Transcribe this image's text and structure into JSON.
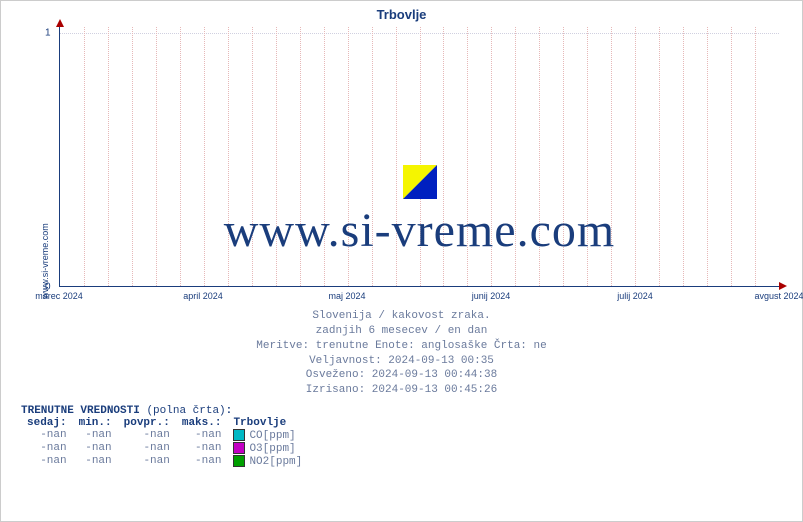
{
  "title": "Trbovlje",
  "site_label": "www.si-vreme.com",
  "watermark_text": "www.si-vreme.com",
  "chart": {
    "type": "line",
    "background_color": "#ffffff",
    "axis_color": "#1a3d7c",
    "grid_color_major": "#d0d0e0",
    "grid_color_minor": "#e6b8b8",
    "arrow_color": "#aa0000",
    "xlim_labels": [
      "marec 2024",
      "april 2024",
      "maj 2024",
      "junij 2024",
      "julij 2024",
      "avgust 2024"
    ],
    "ylim": [
      0,
      1
    ],
    "yticks": [
      0,
      1
    ],
    "minor_x_count": 30,
    "title_fontsize": 13,
    "label_fontsize": 9,
    "watermark_fontsize": 48
  },
  "meta": {
    "line1": "Slovenija / kakovost zraka.",
    "line2": "zadnjih 6 mesecev / en dan",
    "line3": "Meritve: trenutne  Enote: anglosaške  Črta: ne",
    "line4": "Veljavnost: 2024-09-13 00:35",
    "line5": "Osveženo: 2024-09-13 00:44:38",
    "line6": "Izrisano: 2024-09-13 00:45:26"
  },
  "table": {
    "title_main": "TRENUTNE VREDNOSTI",
    "title_sub": "(polna črta)",
    "station": "Trbovlje",
    "headers": {
      "now": "sedaj:",
      "min": "min.:",
      "avg": "povpr.:",
      "max": "maks.:"
    },
    "rows": [
      {
        "now": "-nan",
        "min": "-nan",
        "avg": "-nan",
        "max": "-nan",
        "color": "#00b8c4",
        "label": "CO[ppm]"
      },
      {
        "now": "-nan",
        "min": "-nan",
        "avg": "-nan",
        "max": "-nan",
        "color": "#c400c4",
        "label": "O3[ppm]"
      },
      {
        "now": "-nan",
        "min": "-nan",
        "avg": "-nan",
        "max": "-nan",
        "color": "#00a000",
        "label": "NO2[ppm]"
      }
    ]
  },
  "colors": {
    "text_primary": "#1a3d7c",
    "text_muted": "#6a7a9c"
  }
}
